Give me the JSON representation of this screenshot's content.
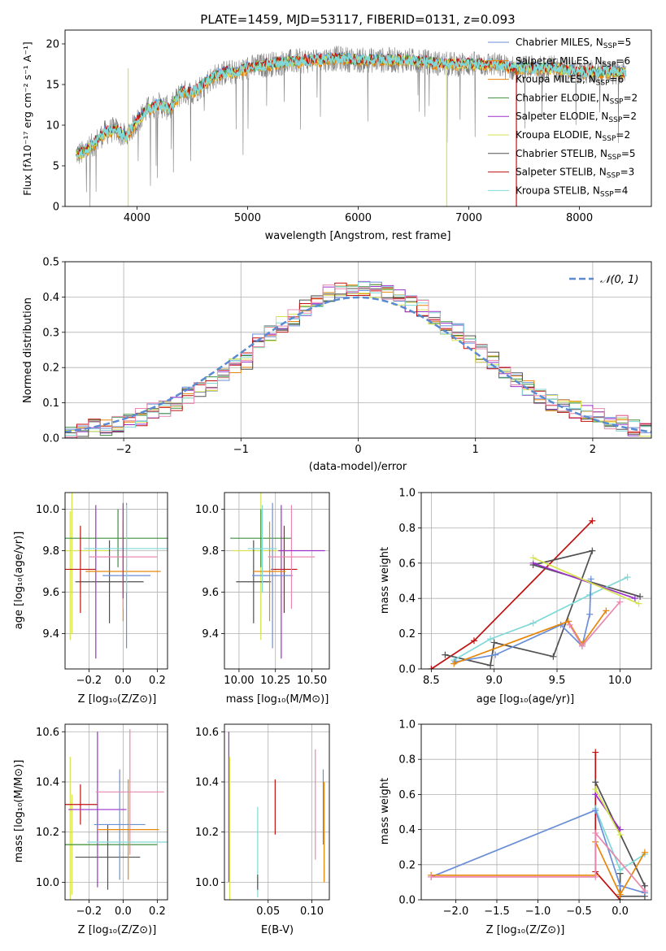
{
  "title": "PLATE=1459, MJD=53117, FIBERID=0131, z=0.093",
  "colors": {
    "Chabrier MILES": "#6a8ed8",
    "Salpeter MILES": "#e8860a",
    "Kroupa MILES": "#e8860a",
    "Chabrier ELODIE": "#3f8f3f",
    "Salpeter ELODIE": "#9b30c9",
    "Kroupa ELODIE": "#d6e34f",
    "Chabrier STELIB": "#505050",
    "Salpeter STELIB": "#c01010",
    "Kroupa STELIB": "#80d8d8",
    "Pink": "#e888b0"
  },
  "panels": {
    "spectrum": {
      "xlabel": "wavelength [Angstrom, rest frame]",
      "ylabel": "Flux [fλ10⁻¹⁷ erg cm⁻² s⁻¹ A⁻¹]",
      "xticks": [
        "4000",
        "5000",
        "6000",
        "7000",
        "8000"
      ],
      "yticks": [
        "0",
        "5",
        "10",
        "15",
        "20"
      ],
      "legend": [
        {
          "label": "Chabrier MILES, N",
          "sub": "SSP",
          "tail": "=5",
          "color": "#6a8ed8"
        },
        {
          "label": "Salpeter MILES, N",
          "sub": "SSP",
          "tail": "=6",
          "color": "#e8860a"
        },
        {
          "label": "Kroupa MILES, N",
          "sub": "SSP",
          "tail": "=6",
          "color": "#e8860a"
        },
        {
          "label": "Chabrier ELODIE, N",
          "sub": "SSP",
          "tail": "=2",
          "color": "#3f8f3f"
        },
        {
          "label": "Salpeter ELODIE, N",
          "sub": "SSP",
          "tail": "=2",
          "color": "#9b30c9"
        },
        {
          "label": "Kroupa ELODIE, N",
          "sub": "SSP",
          "tail": "=2",
          "color": "#d6e34f"
        },
        {
          "label": "Chabrier STELIB, N",
          "sub": "SSP",
          "tail": "=5",
          "color": "#505050"
        },
        {
          "label": "Salpeter STELIB, N",
          "sub": "SSP",
          "tail": "=3",
          "color": "#c01010"
        },
        {
          "label": "Kroupa STELIB, N",
          "sub": "SSP",
          "tail": "=4",
          "color": "#80d8d8"
        }
      ]
    },
    "histogram": {
      "xlabel": "(data-model)/error",
      "ylabel": "Normed distribution",
      "xticks": [
        "−2",
        "−1",
        "0",
        "1",
        "2"
      ],
      "yticks": [
        "0.0",
        "0.1",
        "0.2",
        "0.3",
        "0.4",
        "0.5"
      ],
      "legend": "𝒩(0, 1)"
    },
    "z_age": {
      "xlabel": "Z [log₁₀(Z/Z⊙)]",
      "ylabel": "age  [log₁₀(age/yr)]",
      "xticks": [
        "−0.2",
        "0.0",
        "0.2"
      ],
      "yticks": [
        "9.4",
        "9.6",
        "9.8",
        "10.0"
      ]
    },
    "mass_age": {
      "xlabel": "mass [log₁₀(M/M⊙)]",
      "xticks": [
        "10.00",
        "10.25",
        "10.50"
      ],
      "yticks": [
        "9.4",
        "9.6",
        "9.8",
        "10.0"
      ]
    },
    "age_weight": {
      "xlabel": "age  [log₁₀(age/yr)]",
      "ylabel": "mass weight",
      "xticks": [
        "8.5",
        "9.0",
        "9.5",
        "10.0"
      ],
      "yticks": [
        "0.0",
        "0.2",
        "0.4",
        "0.6",
        "0.8",
        "1.0"
      ]
    },
    "z_mass": {
      "xlabel": "Z [log₁₀(Z/Z⊙)]",
      "ylabel": "mass [log₁₀(M/M⊙)]",
      "xticks": [
        "−0.2",
        "0.0",
        "0.2"
      ],
      "yticks": [
        "10.0",
        "10.2",
        "10.4",
        "10.6"
      ]
    },
    "ebv_mass": {
      "xlabel": "E(B-V)",
      "xticks": [
        "0.05",
        "0.10"
      ],
      "yticks": [
        "10.0",
        "10.2",
        "10.4",
        "10.6"
      ]
    },
    "z_weight": {
      "xlabel": "Z [log₁₀(Z/Z⊙)]",
      "ylabel": "mass weight",
      "xticks": [
        "−2.0",
        "−1.5",
        "−1.0",
        "−0.5",
        "0.0"
      ],
      "yticks": [
        "0.0",
        "0.2",
        "0.4",
        "0.6",
        "0.8",
        "1.0"
      ]
    }
  },
  "chart_data": [
    {
      "type": "line",
      "title": "PLATE=1459, MJD=53117, FIBERID=0131, z=0.093",
      "xlabel": "wavelength [Angstrom, rest frame]",
      "ylabel": "Flux [fλ10⁻¹⁷ erg cm⁻² s⁻¹ A⁻¹]",
      "xlim": [
        3350,
        8650
      ],
      "ylim": [
        0,
        21.7
      ],
      "x": [
        3500,
        3600,
        3700,
        3800,
        3900,
        4000,
        4100,
        4200,
        4300,
        4400,
        4500,
        4600,
        4700,
        4800,
        4900,
        5000,
        5200,
        5400,
        5600,
        5800,
        6000,
        6200,
        6400,
        6600,
        6800,
        7000,
        7200,
        7400,
        7600,
        7800,
        8000,
        8200,
        8400
      ],
      "y": [
        6.5,
        7.5,
        9.0,
        9.5,
        8.5,
        10.5,
        12.0,
        12.5,
        12.0,
        14.0,
        14.0,
        15.0,
        16.0,
        16.5,
        16.5,
        17.0,
        17.5,
        17.8,
        18.0,
        18.2,
        18.0,
        18.0,
        18.0,
        17.8,
        17.5,
        17.5,
        17.5,
        17.0,
        17.0,
        17.0,
        16.5,
        16.5,
        16.5
      ]
    },
    {
      "type": "bar",
      "xlabel": "(data-model)/error",
      "ylabel": "Normed distribution",
      "xlim": [
        -2.5,
        2.5
      ],
      "ylim": [
        0,
        0.5
      ],
      "bins": [
        -2.5,
        -2.4,
        -2.3,
        -2.2,
        -2.1,
        -2.0,
        -1.9,
        -1.8,
        -1.7,
        -1.6,
        -1.5,
        -1.4,
        -1.3,
        -1.2,
        -1.1,
        -1.0,
        -0.9,
        -0.8,
        -0.7,
        -0.6,
        -0.5,
        -0.4,
        -0.3,
        -0.2,
        -0.1,
        0.0,
        0.1,
        0.2,
        0.3,
        0.4,
        0.5,
        0.6,
        0.7,
        0.8,
        0.9,
        1.0,
        1.1,
        1.2,
        1.3,
        1.4,
        1.5,
        1.6,
        1.7,
        1.8,
        1.9,
        2.0,
        2.1,
        2.2,
        2.3,
        2.4
      ],
      "values": [
        0.01,
        0.02,
        0.03,
        0.03,
        0.04,
        0.05,
        0.06,
        0.08,
        0.08,
        0.1,
        0.12,
        0.14,
        0.15,
        0.18,
        0.2,
        0.22,
        0.28,
        0.3,
        0.32,
        0.34,
        0.37,
        0.38,
        0.41,
        0.42,
        0.41,
        0.42,
        0.42,
        0.41,
        0.4,
        0.38,
        0.37,
        0.34,
        0.31,
        0.3,
        0.27,
        0.24,
        0.22,
        0.18,
        0.16,
        0.14,
        0.12,
        0.1,
        0.09,
        0.08,
        0.07,
        0.06,
        0.05,
        0.04,
        0.03,
        0.03
      ],
      "series": [
        {
          "name": "𝒩(0, 1)",
          "type": "gaussian",
          "mean": 0,
          "sigma": 1
        }
      ]
    },
    {
      "type": "scatter",
      "xlabel": "age  [log₁₀(age/yr)]",
      "ylabel": "mass weight",
      "xlim": [
        8.42,
        10.25
      ],
      "ylim": [
        0,
        1
      ],
      "series": [
        {
          "color": "#c01010",
          "x": [
            8.5,
            8.84,
            9.78
          ],
          "y": [
            0.0,
            0.16,
            0.84
          ]
        },
        {
          "color": "#505050",
          "x": [
            8.61,
            8.97,
            9.0,
            9.47,
            9.78,
            9.31,
            10.16
          ],
          "y": [
            0.08,
            0.02,
            0.15,
            0.07,
            0.67,
            0.59,
            0.41
          ]
        },
        {
          "color": "#80d8d8",
          "x": [
            8.68,
            8.97,
            9.31,
            9.76,
            10.06
          ],
          "y": [
            0.05,
            0.17,
            0.26,
            0.42,
            0.52
          ]
        },
        {
          "color": "#6a8ed8",
          "x": [
            8.69,
            9.01,
            9.53,
            9.7,
            9.76,
            9.77
          ],
          "y": [
            0.04,
            0.08,
            0.25,
            0.13,
            0.31,
            0.51
          ]
        },
        {
          "color": "#e8860a",
          "x": [
            8.68,
            9.59,
            9.7,
            9.89
          ],
          "y": [
            0.03,
            0.27,
            0.14,
            0.33
          ]
        },
        {
          "color": "#e888b0",
          "x": [
            9.6,
            9.7,
            10.0
          ],
          "y": [
            0.25,
            0.13,
            0.38
          ]
        },
        {
          "color": "#9b30c9",
          "x": [
            9.31,
            10.12
          ],
          "y": [
            0.6,
            0.4
          ]
        },
        {
          "color": "#d6e34f",
          "x": [
            9.31,
            10.15
          ],
          "y": [
            0.63,
            0.37
          ]
        }
      ]
    },
    {
      "type": "scatter",
      "xlabel": "Z [log₁₀(Z/Z⊙)]",
      "ylabel": "mass weight",
      "xlim": [
        -2.42,
        0.38
      ],
      "ylim": [
        0,
        1
      ],
      "series": [
        {
          "color": "#c01010",
          "x": [
            -0.3,
            -0.3,
            0.0
          ],
          "y": [
            0.84,
            0.16,
            0.0
          ]
        },
        {
          "color": "#505050",
          "x": [
            -0.3,
            0.3,
            0.3,
            0.0,
            0.0
          ],
          "y": [
            0.67,
            0.08,
            0.02,
            0.02,
            0.15
          ]
        },
        {
          "color": "#80d8d8",
          "x": [
            -0.3,
            0.0,
            0.3
          ],
          "y": [
            0.52,
            0.17,
            0.26
          ]
        },
        {
          "color": "#6a8ed8",
          "x": [
            -2.3,
            -0.3,
            0.0,
            0.3
          ],
          "y": [
            0.13,
            0.51,
            0.08,
            0.04
          ]
        },
        {
          "color": "#e8860a",
          "x": [
            -2.3,
            -0.3,
            -0.3,
            0.0,
            0.3
          ],
          "y": [
            0.14,
            0.14,
            0.33,
            0.03,
            0.27
          ]
        },
        {
          "color": "#e888b0",
          "x": [
            -2.3,
            -0.3,
            -0.3,
            0.3
          ],
          "y": [
            0.13,
            0.13,
            0.38,
            0.05
          ]
        },
        {
          "color": "#9b30c9",
          "x": [
            -0.3,
            0.0
          ],
          "y": [
            0.6,
            0.4
          ]
        },
        {
          "color": "#d6e34f",
          "x": [
            -0.3,
            0.0
          ],
          "y": [
            0.63,
            0.37
          ]
        }
      ]
    }
  ]
}
